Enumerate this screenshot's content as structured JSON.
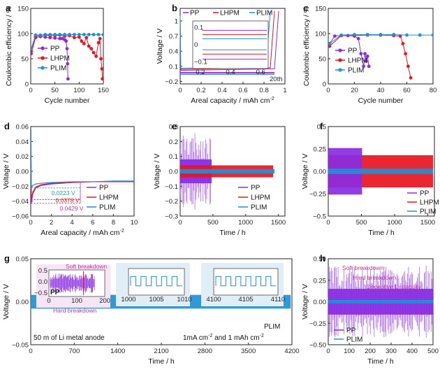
{
  "colors": {
    "PP": "#8a2be2",
    "LHPM": "#e8141f",
    "PLIM": "#1e90d6",
    "pink": "#c0389f",
    "teal": "#2a9da6"
  },
  "chart_data": [
    {
      "panel": "a",
      "type": "scatter",
      "xlabel": "Cycle number",
      "ylabel": "Coulombic efficiency / %",
      "xlim": [
        0,
        150
      ],
      "ylim": [
        0,
        150
      ],
      "xticks": [
        0,
        50,
        100,
        150
      ],
      "yticks": [
        0,
        50,
        100,
        150
      ],
      "series": [
        {
          "name": "PP",
          "x": [
            1,
            10,
            20,
            30,
            40,
            50,
            60,
            65,
            70,
            73,
            75,
            76,
            77
          ],
          "y": [
            60,
            92,
            94,
            93,
            92,
            91,
            90,
            90,
            88,
            85,
            70,
            40,
            10
          ]
        },
        {
          "name": "LHPM",
          "x": [
            1,
            10,
            20,
            30,
            40,
            50,
            60,
            70,
            80,
            90,
            100,
            105,
            110,
            115,
            120,
            125,
            130,
            135,
            140,
            143,
            145,
            147,
            148
          ],
          "y": [
            65,
            95,
            96,
            97,
            96,
            96,
            97,
            95,
            96,
            92,
            93,
            85,
            80,
            92,
            75,
            70,
            62,
            55,
            82,
            90,
            50,
            30,
            10
          ]
        },
        {
          "name": "PLIM",
          "x": [
            1,
            10,
            20,
            30,
            40,
            50,
            60,
            70,
            80,
            90,
            100,
            110,
            120,
            130,
            140,
            150
          ],
          "y": [
            70,
            97,
            97,
            98,
            98,
            98,
            98,
            98,
            98,
            98,
            98,
            98,
            98,
            98,
            98,
            98
          ]
        }
      ]
    },
    {
      "panel": "b",
      "type": "line",
      "xlabel": "Areal capacity / mAh cm",
      "xlabel_sup": "-2",
      "ylabel": "Voltage / V",
      "xlim": [
        0,
        1.0
      ],
      "ylim": [
        -0.25,
        1.25
      ],
      "xticks": [
        0.0,
        0.2,
        0.4,
        0.6,
        0.8,
        1.0
      ],
      "yticks": [
        -0.2,
        0.1,
        0.4,
        0.7,
        1.0
      ],
      "annotation": "20th",
      "inset": {
        "xticks": [
          0.2,
          0.4,
          0.6
        ],
        "yticks": [
          0.1,
          0.0,
          -0.1
        ]
      },
      "series": [
        {
          "name": "PP",
          "plateau_charge": 0.02,
          "plateau_discharge": -0.02,
          "cutoff": 0.9
        },
        {
          "name": "LHPM",
          "plateau_charge": 0.04,
          "plateau_discharge": -0.04,
          "cutoff": 0.86
        },
        {
          "name": "PLIM",
          "plateau_charge": 0.06,
          "plateau_discharge": -0.06,
          "cutoff": 0.82
        }
      ]
    },
    {
      "panel": "c",
      "type": "scatter",
      "xlabel": "Cycle number",
      "ylabel": "Coulombic efficiency / %",
      "xlim": [
        0,
        80
      ],
      "ylim": [
        0,
        150
      ],
      "xticks": [
        0,
        20,
        40,
        60,
        80
      ],
      "yticks": [
        0,
        50,
        100,
        150
      ],
      "series": [
        {
          "name": "PP",
          "x": [
            1,
            5,
            10,
            15,
            20,
            23,
            25,
            27,
            28,
            29,
            30,
            31
          ],
          "y": [
            80,
            95,
            96,
            96,
            95,
            90,
            60,
            35,
            60,
            45,
            55,
            35
          ]
        },
        {
          "name": "LHPM",
          "x": [
            1,
            10,
            20,
            30,
            40,
            50,
            55,
            57,
            59,
            61,
            63
          ],
          "y": [
            75,
            96,
            96,
            97,
            97,
            96,
            95,
            80,
            60,
            35,
            12
          ]
        },
        {
          "name": "PLIM",
          "x": [
            1,
            10,
            20,
            30,
            40,
            50,
            60,
            70,
            80
          ],
          "y": [
            80,
            97,
            98,
            98,
            98,
            98,
            97,
            97,
            97
          ]
        }
      ]
    },
    {
      "panel": "d",
      "type": "line",
      "xlabel": "Areal capacity / mAh cm",
      "xlabel_sup": "-2",
      "ylabel": "Voltage / V",
      "xlim": [
        0,
        10
      ],
      "ylim": [
        -0.06,
        0.06
      ],
      "xticks": [
        0,
        2,
        4,
        6,
        8,
        10
      ],
      "yticks": [
        -0.06,
        -0.04,
        -0.02,
        0.0,
        0.02,
        0.04,
        0.06
      ],
      "annotations": [
        "0.0223 V",
        "0.0378 V",
        "0.0429 V"
      ],
      "series": [
        {
          "name": "PP",
          "x": [
            0.05,
            0.2,
            0.5,
            1,
            2,
            4,
            6,
            8,
            10
          ],
          "y": [
            -0.0429,
            -0.03,
            -0.022,
            -0.019,
            -0.017,
            -0.015,
            -0.014,
            -0.014,
            -0.014
          ]
        },
        {
          "name": "LHPM",
          "x": [
            0.05,
            0.2,
            0.5,
            1,
            2,
            4,
            6,
            8,
            10
          ],
          "y": [
            -0.0378,
            -0.028,
            -0.021,
            -0.018,
            -0.016,
            -0.015,
            -0.014,
            -0.014,
            -0.014
          ]
        },
        {
          "name": "PLIM",
          "x": [
            0.05,
            0.2,
            0.5,
            1,
            2,
            4,
            6,
            8,
            10
          ],
          "y": [
            -0.0223,
            -0.019,
            -0.017,
            -0.016,
            -0.015,
            -0.014,
            -0.014,
            -0.013,
            -0.013
          ]
        }
      ]
    },
    {
      "panel": "e",
      "type": "area",
      "xlabel": "Time / h",
      "ylabel": "Voltage / V",
      "xlim": [
        0,
        1600
      ],
      "ylim": [
        -0.3,
        0.3
      ],
      "xticks": [
        0,
        500,
        1000,
        1500
      ],
      "yticks": [
        -0.3,
        -0.2,
        -0.1,
        0.0,
        0.1,
        0.2,
        0.3
      ],
      "series": [
        {
          "name": "PP",
          "duration": 480,
          "amplitude": 0.08,
          "spikes": true
        },
        {
          "name": "LHPM",
          "duration": 1420,
          "amplitude": 0.04
        },
        {
          "name": "PLIM",
          "duration": 1440,
          "amplitude": 0.015
        }
      ]
    },
    {
      "panel": "f",
      "type": "area",
      "xlabel": "Time / h",
      "ylabel": "Voltage / V",
      "xlim": [
        0,
        1600
      ],
      "ylim": [
        -0.5,
        0.5
      ],
      "xticks": [
        0,
        500,
        1000,
        1500
      ],
      "yticks": [
        -0.5,
        -0.25,
        0.0,
        0.25,
        0.5
      ],
      "series": [
        {
          "name": "PP",
          "duration": 510,
          "amplitude": 0.26
        },
        {
          "name": "LHPM",
          "duration": 1580,
          "amplitude": 0.18
        },
        {
          "name": "PLIM",
          "duration": 1580,
          "amplitude": 0.03
        }
      ]
    },
    {
      "panel": "g",
      "type": "area",
      "xlabel": "Time / h",
      "ylabel": "Voltage / V",
      "xlim": [
        0,
        4200
      ],
      "ylim": [
        -0.05,
        0.05
      ],
      "xticks": [
        0,
        700,
        1400,
        2100,
        2800,
        3500,
        4200
      ],
      "yticks": [
        -0.05,
        0.0,
        0.05
      ],
      "series": [
        {
          "name": "PLIM",
          "duration": 4180,
          "amplitude": 0.008
        }
      ],
      "texts": [
        "50 m of Li metal anode",
        "1mA cm",
        "-2",
        " and 1 mAh cm",
        "-2"
      ],
      "insets": [
        {
          "label": "PP",
          "xticks": [
            0,
            100,
            200
          ],
          "yticks": [
            0.5,
            0.0,
            -0.5
          ],
          "notes": [
            "Soft breakdown",
            "Hard breakdown"
          ]
        },
        {
          "xticks": [
            1000,
            1005,
            1010
          ]
        },
        {
          "xticks": [
            4100,
            4105,
            4110
          ]
        }
      ]
    },
    {
      "panel": "h",
      "type": "area",
      "xlabel": "Time / h",
      "ylabel": "Voltage / V",
      "xlim": [
        0,
        500
      ],
      "ylim": [
        -0.5,
        0.5
      ],
      "xticks": [
        0,
        100,
        200,
        300,
        400,
        500
      ],
      "yticks": [
        -0.5,
        -0.25,
        0.0,
        0.25,
        0.5
      ],
      "notes": [
        "Soft breakdown",
        "Hard breakdown",
        "Deceptive Li stability"
      ],
      "series": [
        {
          "name": "PP",
          "duration": 500,
          "amplitude": 0.15,
          "spikes": true
        },
        {
          "name": "PLIM",
          "duration": 500,
          "amplitude": 0.02
        }
      ]
    }
  ]
}
